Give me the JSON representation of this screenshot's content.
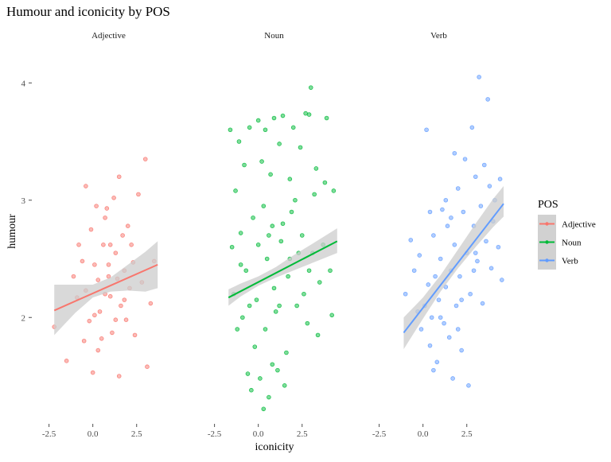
{
  "chart_data": {
    "type": "scatter",
    "title": "Humour and iconicity by POS",
    "xlabel": "iconicity",
    "ylabel": "humour",
    "facets": [
      "Adjective",
      "Noun",
      "Verb"
    ],
    "x_ticks": [
      -2.5,
      0.0,
      2.5
    ],
    "x_tick_labels": [
      "-2.5",
      "0.0",
      "2.5"
    ],
    "y_ticks": [
      2,
      3,
      4
    ],
    "y_tick_labels": [
      "2",
      "3",
      "4"
    ],
    "xlim": [
      -2.8,
      4.6
    ],
    "ylim": [
      1.1,
      4.3
    ],
    "grid": false,
    "legend": {
      "title": "POS",
      "position": "right",
      "entries": [
        "Adjective",
        "Noun",
        "Verb"
      ]
    },
    "colors": {
      "Adjective": "#F8766D",
      "Noun": "#00BA38",
      "Verb": "#619CFF",
      "ribbon": "#cccccc"
    },
    "series": [
      {
        "name": "Adjective",
        "fit": {
          "x0": -2.2,
          "x1": 3.7,
          "y0": 2.06,
          "y1": 2.45
        },
        "ribbon": {
          "x": [
            -2.2,
            -1.0,
            0.0,
            1.0,
            2.0,
            3.0,
            3.7
          ],
          "lower": [
            1.85,
            2.04,
            2.17,
            2.22,
            2.23,
            2.22,
            2.25
          ],
          "upper": [
            2.28,
            2.28,
            2.28,
            2.34,
            2.45,
            2.56,
            2.65
          ]
        },
        "points": [
          [
            -2.2,
            1.92
          ],
          [
            -1.5,
            1.63
          ],
          [
            -1.1,
            2.35
          ],
          [
            -0.9,
            2.17
          ],
          [
            -0.4,
            3.12
          ],
          [
            -0.8,
            2.62
          ],
          [
            -0.6,
            2.48
          ],
          [
            -0.4,
            2.23
          ],
          [
            -0.1,
            2.75
          ],
          [
            0.0,
            1.53
          ],
          [
            0.1,
            2.45
          ],
          [
            0.2,
            2.95
          ],
          [
            0.3,
            2.32
          ],
          [
            0.4,
            2.05
          ],
          [
            0.5,
            1.82
          ],
          [
            0.6,
            2.62
          ],
          [
            0.7,
            2.2
          ],
          [
            0.8,
            2.93
          ],
          [
            0.9,
            2.45
          ],
          [
            1.0,
            2.18
          ],
          [
            1.1,
            1.87
          ],
          [
            1.2,
            3.02
          ],
          [
            1.3,
            2.55
          ],
          [
            1.4,
            2.33
          ],
          [
            1.5,
            1.5
          ],
          [
            1.5,
            3.2
          ],
          [
            1.6,
            2.1
          ],
          [
            1.7,
            2.7
          ],
          [
            1.8,
            2.4
          ],
          [
            1.9,
            1.98
          ],
          [
            2.0,
            2.78
          ],
          [
            2.1,
            2.25
          ],
          [
            2.2,
            2.62
          ],
          [
            2.4,
            1.85
          ],
          [
            2.6,
            3.05
          ],
          [
            2.8,
            2.3
          ],
          [
            3.0,
            3.35
          ],
          [
            3.1,
            1.58
          ],
          [
            3.3,
            2.12
          ],
          [
            3.5,
            2.48
          ],
          [
            -0.2,
            1.97
          ],
          [
            0.3,
            1.72
          ],
          [
            0.7,
            2.85
          ],
          [
            1.0,
            2.62
          ],
          [
            1.3,
            1.98
          ],
          [
            1.8,
            2.15
          ],
          [
            2.3,
            2.47
          ],
          [
            0.1,
            2.02
          ],
          [
            -0.5,
            1.8
          ],
          [
            0.9,
            2.35
          ]
        ]
      },
      {
        "name": "Noun",
        "fit": {
          "x0": -1.7,
          "x1": 4.5,
          "y0": 2.17,
          "y1": 2.65
        },
        "ribbon": {
          "x": [
            -1.7,
            -1.0,
            0.0,
            1.0,
            2.0,
            3.0,
            4.5
          ],
          "lower": [
            2.1,
            2.18,
            2.27,
            2.34,
            2.4,
            2.46,
            2.55
          ],
          "upper": [
            2.24,
            2.29,
            2.35,
            2.43,
            2.53,
            2.62,
            2.76
          ]
        },
        "points": [
          [
            -1.6,
            3.6
          ],
          [
            -1.1,
            3.5
          ],
          [
            -0.5,
            3.62
          ],
          [
            0.0,
            3.68
          ],
          [
            0.4,
            3.6
          ],
          [
            0.9,
            3.7
          ],
          [
            1.4,
            3.72
          ],
          [
            2.0,
            3.62
          ],
          [
            2.7,
            3.74
          ],
          [
            2.9,
            3.73
          ],
          [
            3.0,
            3.96
          ],
          [
            3.9,
            3.7
          ],
          [
            -1.3,
            3.08
          ],
          [
            -0.8,
            3.3
          ],
          [
            0.2,
            3.33
          ],
          [
            0.7,
            3.22
          ],
          [
            1.2,
            3.48
          ],
          [
            1.8,
            3.18
          ],
          [
            2.4,
            3.45
          ],
          [
            3.3,
            3.27
          ],
          [
            3.8,
            3.15
          ],
          [
            4.3,
            3.08
          ],
          [
            -1.5,
            2.6
          ],
          [
            -1.0,
            2.72
          ],
          [
            -0.3,
            2.85
          ],
          [
            0.3,
            2.95
          ],
          [
            0.8,
            2.78
          ],
          [
            1.3,
            2.65
          ],
          [
            1.9,
            2.9
          ],
          [
            2.5,
            2.7
          ],
          [
            3.1,
            2.55
          ],
          [
            3.7,
            2.62
          ],
          [
            4.1,
            2.4
          ],
          [
            -1.4,
            2.2
          ],
          [
            -0.9,
            2.0
          ],
          [
            -0.2,
            1.75
          ],
          [
            0.4,
            1.9
          ],
          [
            1.0,
            2.05
          ],
          [
            1.6,
            1.7
          ],
          [
            2.2,
            2.1
          ],
          [
            2.8,
            1.95
          ],
          [
            3.4,
            1.85
          ],
          [
            -0.6,
            1.52
          ],
          [
            0.1,
            1.48
          ],
          [
            0.6,
            1.32
          ],
          [
            1.1,
            1.55
          ],
          [
            0.3,
            1.22
          ],
          [
            -0.4,
            1.38
          ],
          [
            1.5,
            1.42
          ],
          [
            0.8,
            1.6
          ],
          [
            -1.2,
            1.9
          ],
          [
            4.2,
            2.02
          ],
          [
            -0.7,
            2.4
          ],
          [
            0.5,
            2.5
          ],
          [
            1.7,
            2.35
          ],
          [
            2.6,
            2.2
          ],
          [
            3.5,
            2.3
          ],
          [
            -0.1,
            2.15
          ],
          [
            1.4,
            2.8
          ],
          [
            2.1,
            3.0
          ],
          [
            3.2,
            3.05
          ],
          [
            -1.0,
            2.45
          ],
          [
            0.9,
            2.25
          ],
          [
            2.3,
            2.55
          ],
          [
            0.0,
            2.62
          ],
          [
            1.2,
            2.1
          ],
          [
            -0.5,
            2.1
          ],
          [
            0.6,
            2.7
          ],
          [
            1.8,
            2.5
          ],
          [
            2.9,
            2.4
          ]
        ]
      },
      {
        "name": "Verb",
        "fit": {
          "x0": -1.1,
          "x1": 4.6,
          "y0": 1.87,
          "y1": 2.97
        },
        "ribbon": {
          "x": [
            -1.1,
            0.0,
            1.0,
            2.0,
            3.0,
            4.0,
            4.6
          ],
          "lower": [
            1.73,
            1.99,
            2.22,
            2.42,
            2.6,
            2.77,
            2.86
          ],
          "upper": [
            2.0,
            2.17,
            2.36,
            2.58,
            2.8,
            3.01,
            3.12
          ]
        },
        "points": [
          [
            -1.0,
            2.2
          ],
          [
            -0.7,
            2.66
          ],
          [
            -0.5,
            2.4
          ],
          [
            -0.3,
            2.05
          ],
          [
            -0.2,
            2.53
          ],
          [
            -0.1,
            1.9
          ],
          [
            0.2,
            3.6
          ],
          [
            0.3,
            2.28
          ],
          [
            0.4,
            1.76
          ],
          [
            0.5,
            2.0
          ],
          [
            0.6,
            2.7
          ],
          [
            0.7,
            2.35
          ],
          [
            0.8,
            1.62
          ],
          [
            0.9,
            2.15
          ],
          [
            1.0,
            2.5
          ],
          [
            1.1,
            2.92
          ],
          [
            1.2,
            1.95
          ],
          [
            1.3,
            2.26
          ],
          [
            1.4,
            2.78
          ],
          [
            1.5,
            1.83
          ],
          [
            1.6,
            2.4
          ],
          [
            1.7,
            1.48
          ],
          [
            1.8,
            2.62
          ],
          [
            1.9,
            2.1
          ],
          [
            2.0,
            3.1
          ],
          [
            2.1,
            2.35
          ],
          [
            2.2,
            1.72
          ],
          [
            2.3,
            2.9
          ],
          [
            2.4,
            3.35
          ],
          [
            2.5,
            2.55
          ],
          [
            2.6,
            1.42
          ],
          [
            2.7,
            2.2
          ],
          [
            2.8,
            3.62
          ],
          [
            2.9,
            2.78
          ],
          [
            3.0,
            3.2
          ],
          [
            3.1,
            2.48
          ],
          [
            3.2,
            4.05
          ],
          [
            3.3,
            2.95
          ],
          [
            3.4,
            2.12
          ],
          [
            3.5,
            3.3
          ],
          [
            3.6,
            2.65
          ],
          [
            3.7,
            3.86
          ],
          [
            3.8,
            3.12
          ],
          [
            3.9,
            2.42
          ],
          [
            4.0,
            2.82
          ],
          [
            4.1,
            3.0
          ],
          [
            4.3,
            2.6
          ],
          [
            4.4,
            3.18
          ],
          [
            4.5,
            2.32
          ],
          [
            0.4,
            2.9
          ],
          [
            1.0,
            2.0
          ],
          [
            1.6,
            2.85
          ],
          [
            2.2,
            2.15
          ],
          [
            2.9,
            2.4
          ],
          [
            0.1,
            2.1
          ],
          [
            1.3,
            3.0
          ],
          [
            2.0,
            1.9
          ],
          [
            3.0,
            2.55
          ],
          [
            0.6,
            1.55
          ],
          [
            1.8,
            3.4
          ]
        ]
      }
    ]
  }
}
